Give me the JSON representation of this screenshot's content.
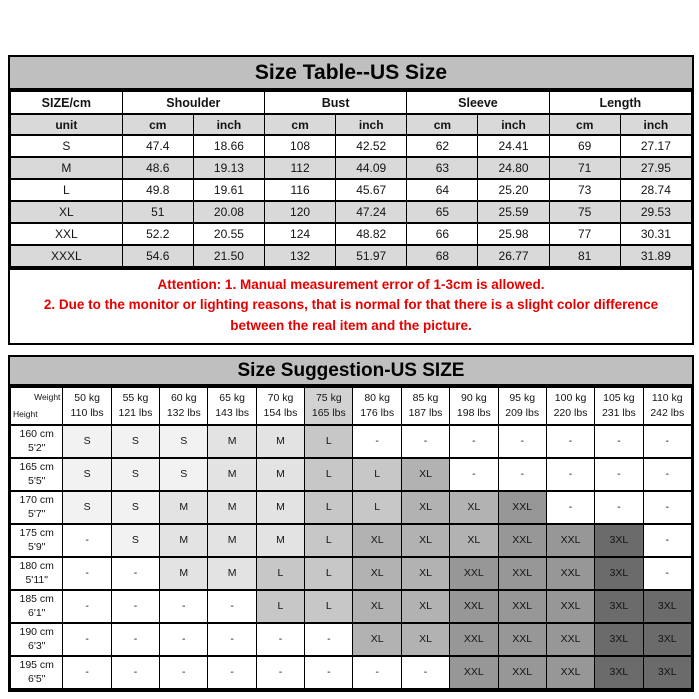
{
  "size_table": {
    "title": "Size Table--US Size",
    "groups": [
      "SIZE/cm",
      "Shoulder",
      "Bust",
      "Sleeve",
      "Length"
    ],
    "unit_row": [
      "unit",
      "cm",
      "inch",
      "cm",
      "inch",
      "cm",
      "inch",
      "cm",
      "inch"
    ],
    "rows": [
      {
        "size": "S",
        "values": [
          "47.4",
          "18.66",
          "108",
          "42.52",
          "62",
          "24.41",
          "69",
          "27.17"
        ]
      },
      {
        "size": "M",
        "values": [
          "48.6",
          "19.13",
          "112",
          "44.09",
          "63",
          "24.80",
          "71",
          "27.95"
        ]
      },
      {
        "size": "L",
        "values": [
          "49.8",
          "19.61",
          "116",
          "45.67",
          "64",
          "25.20",
          "73",
          "28.74"
        ]
      },
      {
        "size": "XL",
        "values": [
          "51",
          "20.08",
          "120",
          "47.24",
          "65",
          "25.59",
          "75",
          "29.53"
        ]
      },
      {
        "size": "XXL",
        "values": [
          "52.2",
          "20.55",
          "124",
          "48.82",
          "66",
          "25.98",
          "77",
          "30.31"
        ]
      },
      {
        "size": "XXXL",
        "values": [
          "54.6",
          "21.50",
          "132",
          "51.97",
          "68",
          "26.77",
          "81",
          "31.89"
        ]
      }
    ]
  },
  "attention": {
    "line1": "Attention:  1. Manual measurement error of 1-3cm is allowed.",
    "line2": "2. Due to the monitor or lighting reasons, that is normal for that there is a slight color difference between the real item and the picture."
  },
  "suggestion_table": {
    "title": "Size Suggestion-US SIZE",
    "corner": {
      "top": "Weight",
      "bottom": "Height"
    },
    "weights": [
      {
        "kg": "50 kg",
        "lbs": "110 lbs",
        "highlight": false
      },
      {
        "kg": "55 kg",
        "lbs": "121 lbs",
        "highlight": false
      },
      {
        "kg": "60 kg",
        "lbs": "132 lbs",
        "highlight": false
      },
      {
        "kg": "65 kg",
        "lbs": "143 lbs",
        "highlight": false
      },
      {
        "kg": "70 kg",
        "lbs": "154 lbs",
        "highlight": false
      },
      {
        "kg": "75 kg",
        "lbs": "165 lbs",
        "highlight": true
      },
      {
        "kg": "80 kg",
        "lbs": "176 lbs",
        "highlight": false
      },
      {
        "kg": "85 kg",
        "lbs": "187 lbs",
        "highlight": false
      },
      {
        "kg": "90 kg",
        "lbs": "198 lbs",
        "highlight": false
      },
      {
        "kg": "95 kg",
        "lbs": "209 lbs",
        "highlight": false
      },
      {
        "kg": "100 kg",
        "lbs": "220 lbs",
        "highlight": false
      },
      {
        "kg": "105 kg",
        "lbs": "231 lbs",
        "highlight": false
      },
      {
        "kg": "110 kg",
        "lbs": "242 lbs",
        "highlight": false
      }
    ],
    "rows": [
      {
        "cm": "160 cm",
        "ft": "5'2\"",
        "sizes": [
          "S",
          "S",
          "S",
          "M",
          "M",
          "L",
          "-",
          "-",
          "-",
          "-",
          "-",
          "-",
          "-"
        ]
      },
      {
        "cm": "165 cm",
        "ft": "5'5\"",
        "sizes": [
          "S",
          "S",
          "S",
          "M",
          "M",
          "L",
          "L",
          "XL",
          "-",
          "-",
          "-",
          "-",
          "-"
        ]
      },
      {
        "cm": "170 cm",
        "ft": "5'7\"",
        "sizes": [
          "S",
          "S",
          "M",
          "M",
          "M",
          "L",
          "L",
          "XL",
          "XL",
          "XXL",
          "-",
          "-",
          "-"
        ]
      },
      {
        "cm": "175 cm",
        "ft": "5'9\"",
        "sizes": [
          "-",
          "S",
          "M",
          "M",
          "M",
          "L",
          "XL",
          "XL",
          "XL",
          "XXL",
          "XXL",
          "3XL",
          "-"
        ]
      },
      {
        "cm": "180 cm",
        "ft": "5'11\"",
        "sizes": [
          "-",
          "-",
          "M",
          "M",
          "L",
          "L",
          "XL",
          "XL",
          "XXL",
          "XXL",
          "XXL",
          "3XL",
          "-"
        ]
      },
      {
        "cm": "185 cm",
        "ft": "6'1\"",
        "sizes": [
          "-",
          "-",
          "-",
          "-",
          "L",
          "L",
          "XL",
          "XL",
          "XXL",
          "XXL",
          "XXL",
          "3XL",
          "3XL"
        ]
      },
      {
        "cm": "190 cm",
        "ft": "6'3\"",
        "sizes": [
          "-",
          "-",
          "-",
          "-",
          "-",
          "-",
          "XL",
          "XL",
          "XXL",
          "XXL",
          "XXL",
          "3XL",
          "3XL"
        ]
      },
      {
        "cm": "195 cm",
        "ft": "6'5\"",
        "sizes": [
          "-",
          "-",
          "-",
          "-",
          "-",
          "-",
          "-",
          "-",
          "XXL",
          "XXL",
          "XXL",
          "3XL",
          "3XL"
        ]
      }
    ]
  },
  "colors": {
    "title_bar": "#bfbfbf",
    "row_alt": "#d9d9d9",
    "attention_red": "#e60000",
    "header_highlight": "#d2d2d2",
    "size_shades": {
      "S": "#f2f2f2",
      "M": "#e3e3e3",
      "L": "#c7c7c7",
      "XL": "#b2b2b2",
      "XXL": "#979797",
      "3XL": "#6b6b6b",
      "-": "#ffffff"
    }
  }
}
